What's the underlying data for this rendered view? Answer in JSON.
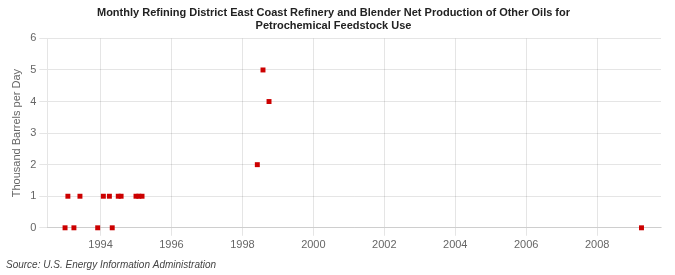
{
  "chart_data": {
    "type": "scatter",
    "title": "Monthly Refining District East Coast Refinery and Blender Net Production of Other Oils for\nPetrochemical Feedstock Use",
    "ylabel": "Thousand Barrels per Day",
    "source": "Source: U.S. Energy Information Administration",
    "x": [
      1993.0,
      1993.08,
      1993.25,
      1993.42,
      1993.92,
      1994.08,
      1994.25,
      1994.33,
      1994.5,
      1994.58,
      1995.0,
      1995.08,
      1995.17,
      1998.42,
      1998.58,
      1998.75,
      2009.25
    ],
    "values": [
      0,
      1,
      0,
      1,
      0,
      1,
      1,
      0,
      1,
      1,
      1,
      1,
      1,
      2,
      5,
      4,
      0
    ],
    "color": "#cc0000",
    "marker": "square",
    "xlim": [
      1992.5,
      2009.8
    ],
    "ylim": [
      0,
      6
    ],
    "xticks": [
      1994,
      1996,
      1998,
      2000,
      2002,
      2004,
      2006,
      2008
    ],
    "yticks": [
      0,
      1,
      2,
      3,
      4,
      5,
      6
    ],
    "grid": true
  }
}
